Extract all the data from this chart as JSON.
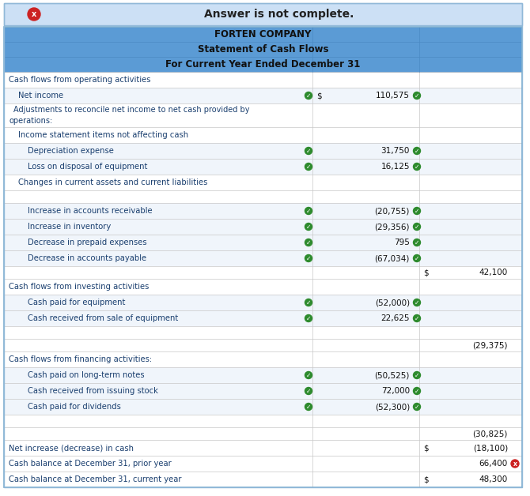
{
  "title_banner": "Answer is not complete.",
  "header1": "FORTEN COMPANY",
  "header2": "Statement of Cash Flows",
  "header3": "For Current Year Ended December 31",
  "banner_bg": "#ddeeff",
  "header_bg": "#5b9bd5",
  "rows": [
    {
      "label": "Cash flows from operating activities",
      "indent": 0,
      "val1": "",
      "val2": "",
      "check_left": false,
      "check_right": false,
      "dollar1": false,
      "dollar2": false,
      "bg": "white",
      "wrong": false
    },
    {
      "label": "Net income",
      "indent": 1,
      "val1": "110,575",
      "val2": "",
      "check_left": true,
      "check_right": true,
      "dollar1": true,
      "dollar2": false,
      "bg": "light",
      "wrong": false
    },
    {
      "label": "Adjustments to reconcile net income to net cash provided by operations:",
      "indent": 0.5,
      "val1": "",
      "val2": "",
      "check_left": false,
      "check_right": false,
      "dollar1": false,
      "dollar2": false,
      "bg": "white",
      "wrong": false,
      "multiline": true
    },
    {
      "label": "Income statement items not affecting cash",
      "indent": 1,
      "val1": "",
      "val2": "",
      "check_left": false,
      "check_right": false,
      "dollar1": false,
      "dollar2": false,
      "bg": "white",
      "wrong": false
    },
    {
      "label": "Depreciation expense",
      "indent": 2,
      "val1": "31,750",
      "val2": "",
      "check_left": true,
      "check_right": true,
      "dollar1": false,
      "dollar2": false,
      "bg": "light",
      "wrong": false
    },
    {
      "label": "Loss on disposal of equipment",
      "indent": 2,
      "val1": "16,125",
      "val2": "",
      "check_left": true,
      "check_right": true,
      "dollar1": false,
      "dollar2": false,
      "bg": "light",
      "wrong": false
    },
    {
      "label": "Changes in current assets and current liabilities",
      "indent": 1,
      "val1": "",
      "val2": "",
      "check_left": false,
      "check_right": false,
      "dollar1": false,
      "dollar2": false,
      "bg": "white",
      "wrong": false
    },
    {
      "label": "",
      "indent": 0,
      "val1": "",
      "val2": "",
      "check_left": false,
      "check_right": false,
      "dollar1": false,
      "dollar2": false,
      "bg": "white",
      "wrong": false
    },
    {
      "label": "Increase in accounts receivable",
      "indent": 2,
      "val1": "(20,755)",
      "val2": "",
      "check_left": true,
      "check_right": true,
      "dollar1": false,
      "dollar2": false,
      "bg": "light",
      "wrong": false
    },
    {
      "label": "Increase in inventory",
      "indent": 2,
      "val1": "(29,356)",
      "val2": "",
      "check_left": true,
      "check_right": true,
      "dollar1": false,
      "dollar2": false,
      "bg": "light",
      "wrong": false
    },
    {
      "label": "Decrease in prepaid expenses",
      "indent": 2,
      "val1": "795",
      "val2": "",
      "check_left": true,
      "check_right": true,
      "dollar1": false,
      "dollar2": false,
      "bg": "light",
      "wrong": false
    },
    {
      "label": "Decrease in accounts payable",
      "indent": 2,
      "val1": "(67,034)",
      "val2": "",
      "check_left": true,
      "check_right": true,
      "dollar1": false,
      "dollar2": false,
      "bg": "light",
      "wrong": false
    },
    {
      "label": "",
      "indent": 0,
      "val1": "",
      "val2": "42,100",
      "check_left": false,
      "check_right": false,
      "dollar1": false,
      "dollar2": true,
      "bg": "white",
      "wrong": false
    },
    {
      "label": "Cash flows from investing activities",
      "indent": 0,
      "val1": "",
      "val2": "",
      "check_left": false,
      "check_right": false,
      "dollar1": false,
      "dollar2": false,
      "bg": "white",
      "wrong": false
    },
    {
      "label": "Cash paid for equipment",
      "indent": 2,
      "val1": "(52,000)",
      "val2": "",
      "check_left": true,
      "check_right": true,
      "dollar1": false,
      "dollar2": false,
      "bg": "light",
      "wrong": false
    },
    {
      "label": "Cash received from sale of equipment",
      "indent": 2,
      "val1": "22,625",
      "val2": "",
      "check_left": true,
      "check_right": true,
      "dollar1": false,
      "dollar2": false,
      "bg": "light",
      "wrong": false
    },
    {
      "label": "",
      "indent": 0,
      "val1": "",
      "val2": "",
      "check_left": false,
      "check_right": false,
      "dollar1": false,
      "dollar2": false,
      "bg": "white",
      "wrong": false
    },
    {
      "label": "",
      "indent": 0,
      "val1": "",
      "val2": "(29,375)",
      "check_left": false,
      "check_right": false,
      "dollar1": false,
      "dollar2": false,
      "bg": "white",
      "wrong": false
    },
    {
      "label": "Cash flows from financing activities:",
      "indent": 0,
      "val1": "",
      "val2": "",
      "check_left": false,
      "check_right": false,
      "dollar1": false,
      "dollar2": false,
      "bg": "white",
      "wrong": false
    },
    {
      "label": "Cash paid on long-term notes",
      "indent": 2,
      "val1": "(50,525)",
      "val2": "",
      "check_left": true,
      "check_right": true,
      "dollar1": false,
      "dollar2": false,
      "bg": "light",
      "wrong": false
    },
    {
      "label": "Cash received from issuing stock",
      "indent": 2,
      "val1": "72,000",
      "val2": "",
      "check_left": true,
      "check_right": true,
      "dollar1": false,
      "dollar2": false,
      "bg": "light",
      "wrong": false
    },
    {
      "label": "Cash paid for dividends",
      "indent": 2,
      "val1": "(52,300)",
      "val2": "",
      "check_left": true,
      "check_right": true,
      "dollar1": false,
      "dollar2": false,
      "bg": "light",
      "wrong": false
    },
    {
      "label": "",
      "indent": 0,
      "val1": "",
      "val2": "",
      "check_left": false,
      "check_right": false,
      "dollar1": false,
      "dollar2": false,
      "bg": "white",
      "wrong": false
    },
    {
      "label": "",
      "indent": 0,
      "val1": "",
      "val2": "(30,825)",
      "check_left": false,
      "check_right": false,
      "dollar1": false,
      "dollar2": false,
      "bg": "white",
      "wrong": false
    },
    {
      "label": "Net increase (decrease) in cash",
      "indent": 0,
      "val1": "",
      "val2": "(18,100)",
      "check_left": false,
      "check_right": false,
      "dollar1": false,
      "dollar2": true,
      "bg": "white",
      "wrong": false
    },
    {
      "label": "Cash balance at December 31, prior year",
      "indent": 0,
      "val1": "",
      "val2": "66,400",
      "check_left": false,
      "check_right": false,
      "dollar1": false,
      "dollar2": false,
      "bg": "white",
      "wrong": true
    },
    {
      "label": "Cash balance at December 31, current year",
      "indent": 0,
      "val1": "",
      "val2": "48,300",
      "check_left": false,
      "check_right": false,
      "dollar1": false,
      "dollar2": true,
      "bg": "white",
      "wrong": false
    }
  ]
}
